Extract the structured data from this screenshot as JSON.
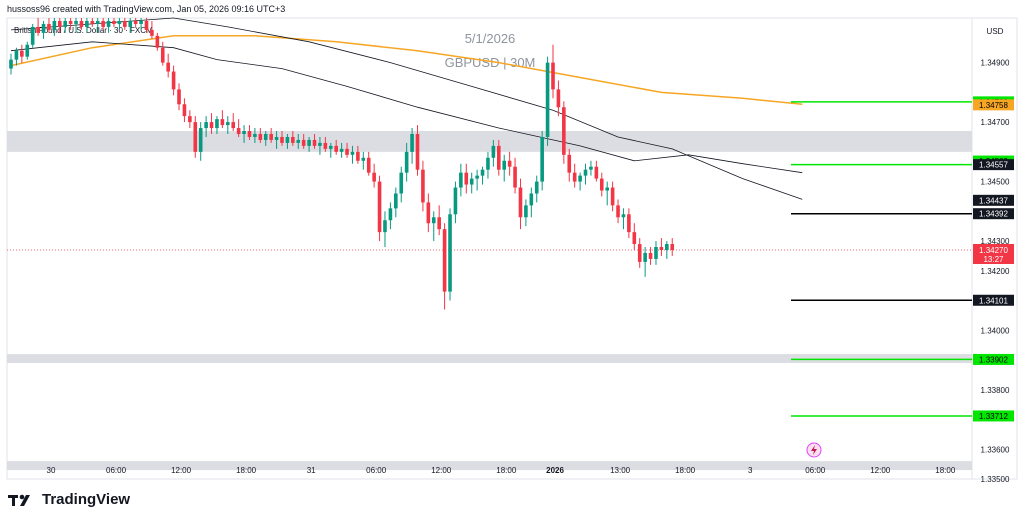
{
  "header": {
    "author_line": "hussoss96 created with TradingView.com, Jan 05, 2026 09:16 UTC+3",
    "symbol_line": "British Pound / U.S. Dollar · 30 · FXCM"
  },
  "brand": {
    "name": "TradingView",
    "icon": "tradingview-logo-icon"
  },
  "watermark": {
    "date": "5/1/2026",
    "title": "GBPUSD | 30M"
  },
  "colors": {
    "bull": "#089981",
    "bear": "#f23645",
    "ema_orange": "#f6a623",
    "ma_black": "#131722",
    "zone": "#dcdde2",
    "green_line": "#00e600",
    "price_red": "#f23645"
  },
  "chart_data": {
    "type": "candlestick",
    "symbol": "GBPUSD",
    "timeframe": "30M",
    "currency": "USD",
    "ylim": [
      1.335,
      1.3505
    ],
    "price_ticks": [
      "1.34900",
      "1.34700",
      "1.34500",
      "1.34300",
      "1.34200",
      "1.34000",
      "1.33800",
      "1.33600",
      "1.33500"
    ],
    "time_labels": [
      {
        "t": 0,
        "label": "30"
      },
      {
        "t": 12,
        "label": "06:00"
      },
      {
        "t": 24,
        "label": "12:00"
      },
      {
        "t": 36,
        "label": "18:00"
      },
      {
        "t": 48,
        "label": "31"
      },
      {
        "t": 60,
        "label": "06:00"
      },
      {
        "t": 72,
        "label": "12:00"
      },
      {
        "t": 84,
        "label": "18:00"
      },
      {
        "t": 93,
        "label": "2026",
        "bold": true
      },
      {
        "t": 105,
        "label": "13:00"
      },
      {
        "t": 117,
        "label": "18:00"
      },
      {
        "t": 129,
        "label": "3"
      },
      {
        "t": 141,
        "label": "06:00"
      },
      {
        "t": 153,
        "label": "12:00"
      },
      {
        "t": 165,
        "label": "18:00"
      }
    ],
    "last_price": "1.34270",
    "countdown": "13:27",
    "zones": [
      {
        "from": 1.346,
        "to": 1.3467
      },
      {
        "from": 1.3389,
        "to": 1.3392
      },
      {
        "from": 1.3353,
        "to": 1.3356
      }
    ],
    "levels": [
      {
        "value": 1.34768,
        "label": "1.34768",
        "style": "green",
        "line": true
      },
      {
        "value": 1.34758,
        "label": "1.34758",
        "style": "orange",
        "line": false
      },
      {
        "value": 1.34569,
        "label": "1.34569",
        "style": "green",
        "line": false
      },
      {
        "value": 1.34557,
        "label": "1.34557",
        "style": "dark",
        "line": true,
        "color": "green"
      },
      {
        "value": 1.34437,
        "label": "1.34437",
        "style": "dark",
        "line": false
      },
      {
        "value": 1.34392,
        "label": "1.34392",
        "style": "dark",
        "line": true,
        "color": "black"
      },
      {
        "value": 1.34101,
        "label": "1.34101",
        "style": "dark",
        "line": true,
        "color": "black"
      },
      {
        "value": 1.33902,
        "label": "1.33902",
        "style": "green",
        "line": true
      },
      {
        "value": 1.33712,
        "label": "1.33712",
        "style": "green",
        "line": true
      }
    ],
    "ema": [
      [
        0,
        1.3489
      ],
      [
        15,
        1.3495
      ],
      [
        30,
        1.3499
      ],
      [
        45,
        1.3499
      ],
      [
        60,
        1.3497
      ],
      [
        75,
        1.3494
      ],
      [
        90,
        1.349
      ],
      [
        105,
        1.3485
      ],
      [
        120,
        1.348
      ],
      [
        135,
        1.3478
      ],
      [
        146,
        1.3476
      ]
    ],
    "ma": [
      [
        0,
        1.3494
      ],
      [
        15,
        1.3497
      ],
      [
        30,
        1.3495
      ],
      [
        38,
        1.3491
      ],
      [
        50,
        1.3488
      ],
      [
        62,
        1.3482
      ],
      [
        75,
        1.3475
      ],
      [
        90,
        1.3468
      ],
      [
        105,
        1.3462
      ],
      [
        115,
        1.3457
      ],
      [
        125,
        1.3459
      ],
      [
        135,
        1.3456
      ],
      [
        146,
        1.3453
      ]
    ],
    "ma2": [
      [
        0,
        1.3501
      ],
      [
        15,
        1.3503
      ],
      [
        30,
        1.3505
      ],
      [
        40,
        1.3502
      ],
      [
        55,
        1.3497
      ],
      [
        70,
        1.349
      ],
      [
        85,
        1.3482
      ],
      [
        100,
        1.3474
      ],
      [
        112,
        1.3465
      ],
      [
        122,
        1.3461
      ],
      [
        135,
        1.3451
      ],
      [
        146,
        1.3444
      ]
    ],
    "candles": [
      [
        1.3488,
        1.3493,
        1.3486,
        1.3491
      ],
      [
        1.3491,
        1.3495,
        1.3489,
        1.3494
      ],
      [
        1.3494,
        1.3496,
        1.349,
        1.3492
      ],
      [
        1.3492,
        1.3497,
        1.3491,
        1.3496
      ],
      [
        1.3496,
        1.3503,
        1.3495,
        1.3502
      ],
      [
        1.3502,
        1.3505,
        1.3499,
        1.35
      ],
      [
        1.35,
        1.3504,
        1.3498,
        1.3503
      ],
      [
        1.3503,
        1.3505,
        1.35,
        1.3501
      ],
      [
        1.3501,
        1.3505,
        1.3499,
        1.3504
      ],
      [
        1.3504,
        1.3505,
        1.35,
        1.3502
      ],
      [
        1.3502,
        1.3505,
        1.35,
        1.3504
      ],
      [
        1.3504,
        1.3505,
        1.3501,
        1.3503
      ],
      [
        1.3503,
        1.3505,
        1.35,
        1.3504
      ],
      [
        1.3504,
        1.3505,
        1.3501,
        1.3502
      ],
      [
        1.3502,
        1.3505,
        1.35,
        1.3504
      ],
      [
        1.3504,
        1.3505,
        1.3502,
        1.3503
      ],
      [
        1.3503,
        1.3505,
        1.35,
        1.3504
      ],
      [
        1.3504,
        1.3505,
        1.3501,
        1.3502
      ],
      [
        1.3502,
        1.3505,
        1.35,
        1.3504
      ],
      [
        1.3504,
        1.3505,
        1.3502,
        1.3503
      ],
      [
        1.3503,
        1.3505,
        1.3501,
        1.3504
      ],
      [
        1.3504,
        1.3505,
        1.3501,
        1.3502
      ],
      [
        1.3502,
        1.3505,
        1.35,
        1.3504
      ],
      [
        1.3504,
        1.3505,
        1.3502,
        1.3503
      ],
      [
        1.3503,
        1.3505,
        1.3501,
        1.3504
      ],
      [
        1.3504,
        1.3505,
        1.35,
        1.3501
      ],
      [
        1.3501,
        1.3504,
        1.3498,
        1.3499
      ],
      [
        1.3499,
        1.35,
        1.3494,
        1.3495
      ],
      [
        1.3495,
        1.3497,
        1.3489,
        1.349
      ],
      [
        1.349,
        1.3493,
        1.3485,
        1.3487
      ],
      [
        1.3487,
        1.3489,
        1.3479,
        1.3481
      ],
      [
        1.3481,
        1.3483,
        1.3474,
        1.3476
      ],
      [
        1.3476,
        1.3478,
        1.347,
        1.3472
      ],
      [
        1.3472,
        1.3474,
        1.3468,
        1.347
      ],
      [
        1.347,
        1.3472,
        1.3458,
        1.346
      ],
      [
        1.346,
        1.347,
        1.3457,
        1.3468
      ],
      [
        1.3468,
        1.3472,
        1.3465,
        1.347
      ],
      [
        1.347,
        1.3473,
        1.3466,
        1.3468
      ],
      [
        1.3468,
        1.3472,
        1.3466,
        1.3471
      ],
      [
        1.3471,
        1.3474,
        1.3468,
        1.3469
      ],
      [
        1.3469,
        1.3472,
        1.3466,
        1.347
      ],
      [
        1.347,
        1.3473,
        1.3467,
        1.3468
      ],
      [
        1.3468,
        1.3471,
        1.3465,
        1.3466
      ],
      [
        1.3466,
        1.3469,
        1.3463,
        1.3467
      ],
      [
        1.3467,
        1.3469,
        1.3464,
        1.3465
      ],
      [
        1.3465,
        1.3468,
        1.3463,
        1.3466
      ],
      [
        1.3466,
        1.3468,
        1.3463,
        1.3464
      ],
      [
        1.3464,
        1.3467,
        1.3462,
        1.3466
      ],
      [
        1.3466,
        1.3468,
        1.3463,
        1.3464
      ],
      [
        1.3464,
        1.3467,
        1.3461,
        1.3465
      ],
      [
        1.3465,
        1.3467,
        1.3462,
        1.3463
      ],
      [
        1.3463,
        1.3466,
        1.3461,
        1.3465
      ],
      [
        1.3465,
        1.3467,
        1.3462,
        1.3463
      ],
      [
        1.3463,
        1.3466,
        1.3461,
        1.3464
      ],
      [
        1.3464,
        1.3466,
        1.3461,
        1.3462
      ],
      [
        1.3462,
        1.3465,
        1.346,
        1.3464
      ],
      [
        1.3464,
        1.3466,
        1.3461,
        1.3462
      ],
      [
        1.3462,
        1.3465,
        1.3459,
        1.3463
      ],
      [
        1.3463,
        1.3465,
        1.346,
        1.3461
      ],
      [
        1.3461,
        1.3463,
        1.3458,
        1.3462
      ],
      [
        1.3462,
        1.3464,
        1.3459,
        1.346
      ],
      [
        1.346,
        1.3463,
        1.3458,
        1.3461
      ],
      [
        1.3461,
        1.3463,
        1.3458,
        1.3459
      ],
      [
        1.3459,
        1.3462,
        1.3456,
        1.346
      ],
      [
        1.346,
        1.3462,
        1.3456,
        1.3457
      ],
      [
        1.3457,
        1.346,
        1.3454,
        1.3458
      ],
      [
        1.3458,
        1.346,
        1.3452,
        1.3453
      ],
      [
        1.3453,
        1.3456,
        1.3448,
        1.345
      ],
      [
        1.345,
        1.3452,
        1.343,
        1.3433
      ],
      [
        1.3433,
        1.344,
        1.3428,
        1.3437
      ],
      [
        1.3437,
        1.3443,
        1.3434,
        1.3441
      ],
      [
        1.3441,
        1.3448,
        1.3438,
        1.3446
      ],
      [
        1.3446,
        1.3455,
        1.3443,
        1.3453
      ],
      [
        1.3453,
        1.3463,
        1.345,
        1.346
      ],
      [
        1.346,
        1.3468,
        1.3456,
        1.3466
      ],
      [
        1.3466,
        1.3469,
        1.3452,
        1.3454
      ],
      [
        1.3454,
        1.3457,
        1.344,
        1.3443
      ],
      [
        1.3443,
        1.3446,
        1.3433,
        1.3436
      ],
      [
        1.3436,
        1.344,
        1.343,
        1.3438
      ],
      [
        1.3438,
        1.3442,
        1.3432,
        1.3434
      ],
      [
        1.3434,
        1.3436,
        1.3407,
        1.3413
      ],
      [
        1.3413,
        1.3441,
        1.341,
        1.3439
      ],
      [
        1.3439,
        1.345,
        1.3436,
        1.3448
      ],
      [
        1.3448,
        1.3456,
        1.3445,
        1.3453
      ],
      [
        1.3453,
        1.3456,
        1.3446,
        1.3449
      ],
      [
        1.3449,
        1.3453,
        1.3446,
        1.3451
      ],
      [
        1.3451,
        1.3454,
        1.3447,
        1.3452
      ],
      [
        1.3452,
        1.3455,
        1.3449,
        1.3454
      ],
      [
        1.3454,
        1.346,
        1.3451,
        1.3458
      ],
      [
        1.3458,
        1.3464,
        1.3455,
        1.3462
      ],
      [
        1.3462,
        1.3464,
        1.3452,
        1.3454
      ],
      [
        1.3454,
        1.3459,
        1.345,
        1.3457
      ],
      [
        1.3457,
        1.346,
        1.3452,
        1.3455
      ],
      [
        1.3455,
        1.3458,
        1.3446,
        1.3448
      ],
      [
        1.3448,
        1.3451,
        1.3434,
        1.3438
      ],
      [
        1.3438,
        1.3444,
        1.3435,
        1.3442
      ],
      [
        1.3442,
        1.3448,
        1.3438,
        1.3446
      ],
      [
        1.3446,
        1.3452,
        1.3443,
        1.345
      ],
      [
        1.345,
        1.3467,
        1.3447,
        1.3465
      ],
      [
        1.3465,
        1.3492,
        1.3462,
        1.349
      ],
      [
        1.349,
        1.3496,
        1.3478,
        1.3481
      ],
      [
        1.3481,
        1.3484,
        1.3472,
        1.3475
      ],
      [
        1.3475,
        1.3477,
        1.3456,
        1.3459
      ],
      [
        1.3459,
        1.3461,
        1.345,
        1.3453
      ],
      [
        1.3453,
        1.3456,
        1.3448,
        1.345
      ],
      [
        1.345,
        1.3453,
        1.3447,
        1.3452
      ],
      [
        1.3452,
        1.3456,
        1.3449,
        1.3454
      ],
      [
        1.3454,
        1.3457,
        1.3452,
        1.3455
      ],
      [
        1.3455,
        1.3457,
        1.345,
        1.3451
      ],
      [
        1.3451,
        1.3453,
        1.3445,
        1.3447
      ],
      [
        1.3447,
        1.345,
        1.3442,
        1.3448
      ],
      [
        1.3448,
        1.345,
        1.344,
        1.3442
      ],
      [
        1.3442,
        1.3444,
        1.3436,
        1.3438
      ],
      [
        1.3438,
        1.3441,
        1.3434,
        1.3439
      ],
      [
        1.3439,
        1.3441,
        1.3431,
        1.3433
      ],
      [
        1.3433,
        1.3436,
        1.3427,
        1.3429
      ],
      [
        1.3429,
        1.3431,
        1.3421,
        1.3423
      ],
      [
        1.3423,
        1.3428,
        1.3418,
        1.3426
      ],
      [
        1.3426,
        1.3428,
        1.3422,
        1.3424
      ],
      [
        1.3424,
        1.343,
        1.3422,
        1.3428
      ],
      [
        1.3428,
        1.3431,
        1.3425,
        1.3427
      ],
      [
        1.3427,
        1.343,
        1.3424,
        1.3429
      ],
      [
        1.3429,
        1.3431,
        1.3425,
        1.3427
      ]
    ]
  }
}
